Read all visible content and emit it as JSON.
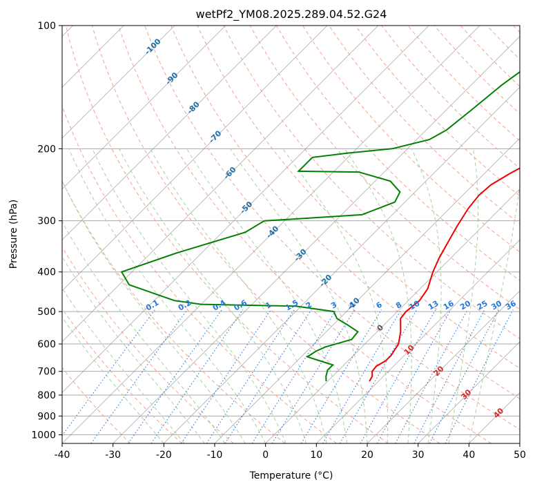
{
  "chart_data": {
    "type": "line",
    "title": "wetPf2_YM08.2025.289.04.52.G24",
    "xlabel": "Temperature (°C)",
    "ylabel": "Pressure (hPa)",
    "xlim": [
      -40,
      50
    ],
    "ylim": [
      1050,
      100
    ],
    "x_ticks": [
      -40,
      -30,
      -20,
      -10,
      0,
      10,
      20,
      30,
      40,
      50
    ],
    "y_ticks": [
      1000,
      900,
      800,
      700,
      600,
      500,
      400,
      300,
      200,
      100
    ],
    "skew": true,
    "series": [
      {
        "name": "Temperature",
        "color": "#ee0000",
        "points": [
          [
            8.2,
            740
          ],
          [
            7.8,
            720
          ],
          [
            6.8,
            700
          ],
          [
            6.6,
            680
          ],
          [
            7.4,
            660
          ],
          [
            7.4,
            640
          ],
          [
            7.0,
            620
          ],
          [
            6.6,
            600
          ],
          [
            4.6,
            560
          ],
          [
            2.0,
            520
          ],
          [
            1.7,
            500
          ],
          [
            2.2,
            470
          ],
          [
            1.5,
            440
          ],
          [
            -0.8,
            400
          ],
          [
            -2.3,
            370
          ],
          [
            -3.6,
            340
          ],
          [
            -5.0,
            310
          ],
          [
            -6.3,
            280
          ],
          [
            -6.8,
            260
          ],
          [
            -6.5,
            245
          ],
          [
            -5.0,
            230
          ],
          [
            -3.0,
            215
          ],
          [
            -2.0,
            200
          ],
          [
            -2.2,
            185
          ],
          [
            -3.0,
            170
          ],
          [
            -4.0,
            155
          ],
          [
            -5.0,
            140
          ],
          [
            -7.0,
            125
          ],
          [
            -10.0,
            115
          ],
          [
            -12.5,
            107
          ],
          [
            -14.5,
            100
          ]
        ]
      },
      {
        "name": "Dewpoint",
        "color": "#008000",
        "points": [
          [
            -0.3,
            740
          ],
          [
            -1.3,
            720
          ],
          [
            -2.2,
            695
          ],
          [
            -2.2,
            675
          ],
          [
            -5.5,
            660
          ],
          [
            -8.8,
            645
          ],
          [
            -8.2,
            625
          ],
          [
            -7.2,
            610
          ],
          [
            -3.5,
            585
          ],
          [
            -3.8,
            560
          ],
          [
            -7.0,
            540
          ],
          [
            -10.5,
            520
          ],
          [
            -12.5,
            500
          ],
          [
            -21.0,
            485
          ],
          [
            -40.0,
            480
          ],
          [
            -46.0,
            470
          ],
          [
            -58.0,
            430
          ],
          [
            -62.0,
            400
          ],
          [
            -55.0,
            360
          ],
          [
            -45.5,
            320
          ],
          [
            -44.0,
            300
          ],
          [
            -40.0,
            298
          ],
          [
            -26.0,
            290
          ],
          [
            -22.0,
            270
          ],
          [
            -23.0,
            255
          ],
          [
            -27.0,
            240
          ],
          [
            -35.0,
            228
          ],
          [
            -47.0,
            227
          ],
          [
            -47.0,
            210
          ],
          [
            -41.0,
            205
          ],
          [
            -33.0,
            200
          ],
          [
            -27.5,
            190
          ],
          [
            -26.0,
            180
          ],
          [
            -25.0,
            160
          ],
          [
            -24.0,
            140
          ],
          [
            -22.0,
            120
          ],
          [
            -20.0,
            110
          ],
          [
            -19.0,
            100
          ]
        ]
      }
    ],
    "isotherm_labels": [
      "-100",
      "-90",
      "-80",
      "-70",
      "-60",
      "-50",
      "-40",
      "-30",
      "-20",
      "-10",
      "0",
      "10",
      "20",
      "30",
      "40"
    ],
    "mixing_ratio_labels": [
      "0.1",
      "0.2",
      "0.4",
      "0.6",
      "1",
      "1.5",
      "2",
      "3",
      "4",
      "6",
      "8",
      "10",
      "13",
      "16",
      "20",
      "25",
      "30",
      "36"
    ],
    "colors": {
      "isotherm_line": "#777777",
      "isobar_line": "#aaaaaa",
      "dry_adiabat": "#f6a08a",
      "moist_adiabat": "#a6d0a0",
      "mixing_ratio": "#2277dd",
      "isotherm_label_cold": "#1f6fa6",
      "isotherm_label_warm": "#d62728",
      "isotherm_label_zero": "#555555"
    }
  }
}
